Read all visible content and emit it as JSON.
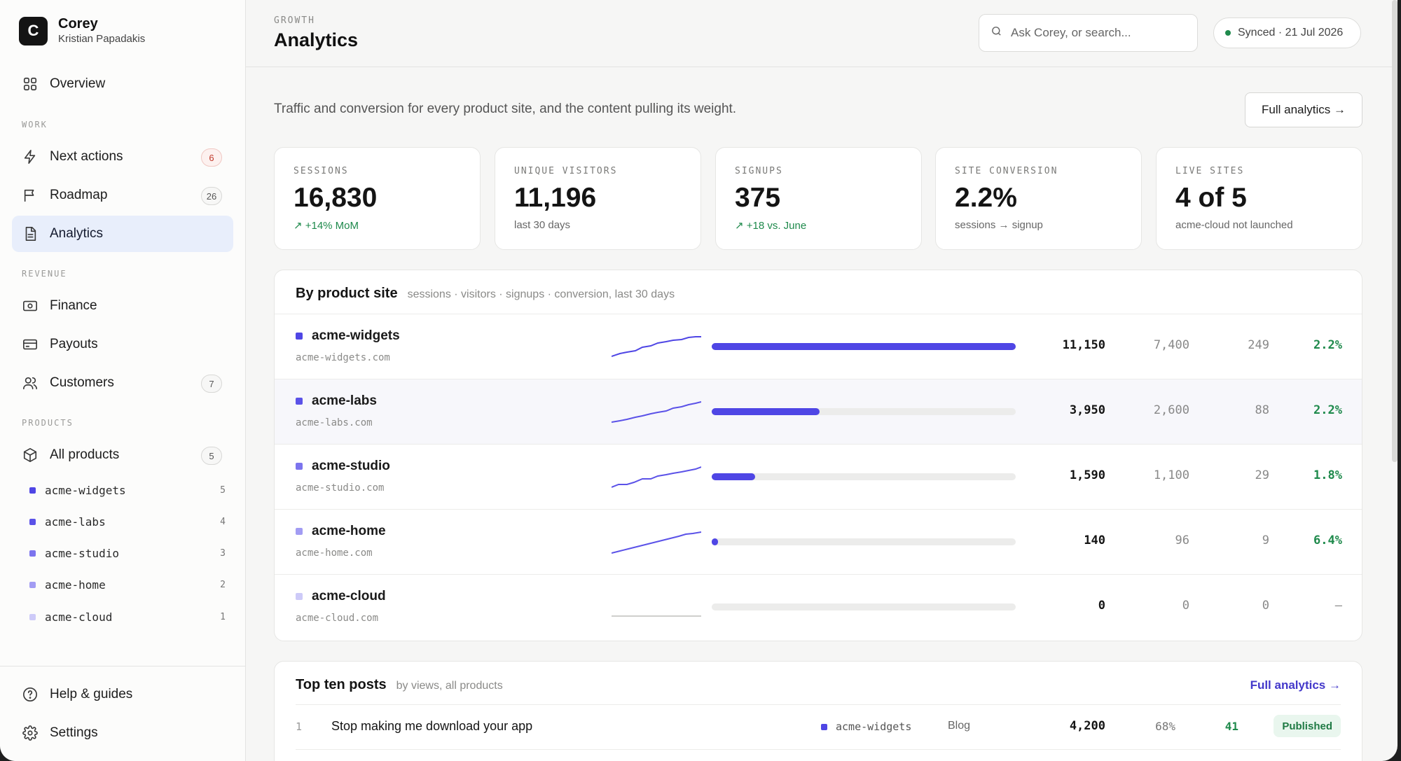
{
  "workspace": {
    "logo_letter": "C",
    "name": "Corey",
    "user": "Kristian Papadakis"
  },
  "nav": {
    "overview": {
      "label": "Overview",
      "icon": "grid-icon"
    },
    "work_label": "WORK",
    "next_actions": {
      "label": "Next actions",
      "count": "6",
      "icon": "bolt-icon"
    },
    "roadmap": {
      "label": "Roadmap",
      "count": "26",
      "icon": "flag-icon"
    },
    "analytics": {
      "label": "Analytics",
      "icon": "document-icon"
    },
    "revenue_label": "REVENUE",
    "finance": {
      "label": "Finance",
      "icon": "banknote-icon"
    },
    "payouts": {
      "label": "Payouts",
      "icon": "card-icon"
    },
    "customers": {
      "label": "Customers",
      "count": "7",
      "icon": "users-icon"
    },
    "products_label": "PRODUCTS",
    "all_products": {
      "label": "All products",
      "count": "5",
      "icon": "box-icon"
    },
    "products": [
      {
        "name": "acme-widgets",
        "count": "5",
        "color": "#4f46e5"
      },
      {
        "name": "acme-labs",
        "count": "4",
        "color": "#5b52e8"
      },
      {
        "name": "acme-studio",
        "count": "3",
        "color": "#7c74ee"
      },
      {
        "name": "acme-home",
        "count": "2",
        "color": "#a29cf3"
      },
      {
        "name": "acme-cloud",
        "count": "1",
        "color": "#cdcaf8"
      }
    ],
    "help": {
      "label": "Help & guides",
      "icon": "help-icon"
    },
    "settings": {
      "label": "Settings",
      "icon": "gear-icon"
    }
  },
  "header": {
    "eyebrow": "GROWTH",
    "title": "Analytics",
    "search_placeholder": "Ask Corey, or search...",
    "sync_status": "Synced · 21 Jul 2026"
  },
  "subtitle": "Traffic and conversion for every product site, and the content pulling its weight.",
  "full_analytics_button": "Full analytics →",
  "kpis": [
    {
      "label": "SESSIONS",
      "value": "16,830",
      "delta": "↗ +14% MoM",
      "trend": "up"
    },
    {
      "label": "UNIQUE VISITORS",
      "value": "11,196",
      "delta": "last 30 days",
      "trend": "neutral"
    },
    {
      "label": "SIGNUPS",
      "value": "375",
      "delta": "↗ +18 vs. June",
      "trend": "up"
    },
    {
      "label": "SITE CONVERSION",
      "value": "2.2%",
      "delta": "sessions → signup",
      "trend": "neutral"
    },
    {
      "label": "LIVE SITES",
      "value": "4 of 5",
      "delta": "acme-cloud not launched",
      "trend": "neutral"
    }
  ],
  "sites_card": {
    "title": "By product site",
    "subtitle": "sessions · visitors · signups · conversion, last 30 days",
    "rows": [
      {
        "name": "acme-widgets",
        "domain": "acme-widgets.com",
        "color": "#4f46e5",
        "sessions": "11,150",
        "visitors": "7,400",
        "signups": "249",
        "conversion": "2.2%",
        "share": 1.0
      },
      {
        "name": "acme-labs",
        "domain": "acme-labs.com",
        "color": "#5b52e8",
        "sessions": "3,950",
        "visitors": "2,600",
        "signups": "88",
        "conversion": "2.2%",
        "share": 0.354
      },
      {
        "name": "acme-studio",
        "domain": "acme-studio.com",
        "color": "#7c74ee",
        "sessions": "1,590",
        "visitors": "1,100",
        "signups": "29",
        "conversion": "1.8%",
        "share": 0.143
      },
      {
        "name": "acme-home",
        "domain": "acme-home.com",
        "color": "#a29cf3",
        "sessions": "140",
        "visitors": "96",
        "signups": "9",
        "conversion": "6.4%",
        "share": 0.013
      },
      {
        "name": "acme-cloud",
        "domain": "acme-cloud.com",
        "color": "#cdcaf8",
        "sessions": "0",
        "visitors": "0",
        "signups": "0",
        "conversion": "—",
        "share": 0
      }
    ]
  },
  "posts_card": {
    "title": "Top ten posts",
    "subtitle": "by views, all products",
    "link": "Full analytics →",
    "rows": [
      {
        "rank": "1",
        "title": "Stop making me download your app",
        "product": "acme-widgets",
        "product_color": "#4f46e5",
        "type": "Blog",
        "views": "4,200",
        "engagement": "68%",
        "signups": "41",
        "status": "Published"
      }
    ]
  }
}
